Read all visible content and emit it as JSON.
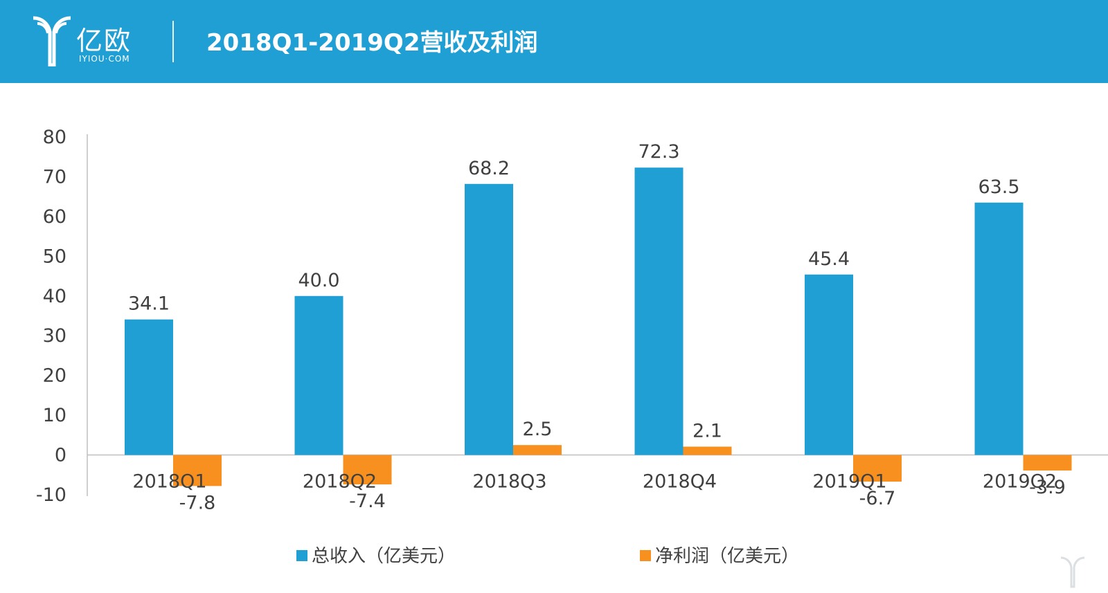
{
  "header": {
    "logo_text": "亿欧",
    "logo_sub": "IYIOU·COM",
    "title": "2018Q1-2019Q2营收及利润"
  },
  "colors": {
    "header_bg": "#1f9fd4",
    "revenue": "#1f9fd4",
    "profit": "#f7901e",
    "axis": "#bfbfbf",
    "text": "#404040"
  },
  "chart_data": {
    "type": "bar",
    "categories": [
      "2018Q1",
      "2018Q2",
      "2018Q3",
      "2018Q4",
      "2019Q1",
      "2019Q2"
    ],
    "series": [
      {
        "name": "总收入（亿美元）",
        "values": [
          34.1,
          40.0,
          68.2,
          72.3,
          45.4,
          63.5
        ],
        "labels": [
          "34.1",
          "40.0",
          "68.2",
          "72.3",
          "45.4",
          "63.5"
        ]
      },
      {
        "name": "净利润（亿美元）",
        "values": [
          -7.8,
          -7.4,
          2.5,
          2.1,
          -6.7,
          -3.9
        ],
        "labels": [
          "-7.8",
          "-7.4",
          "2.5",
          "2.1",
          "-6.7",
          "-3.9"
        ]
      }
    ],
    "ylim": [
      -10,
      80
    ],
    "yticks": [
      -10,
      0,
      10,
      20,
      30,
      40,
      50,
      60,
      70,
      80
    ],
    "legend_position": "bottom",
    "grid": false
  }
}
